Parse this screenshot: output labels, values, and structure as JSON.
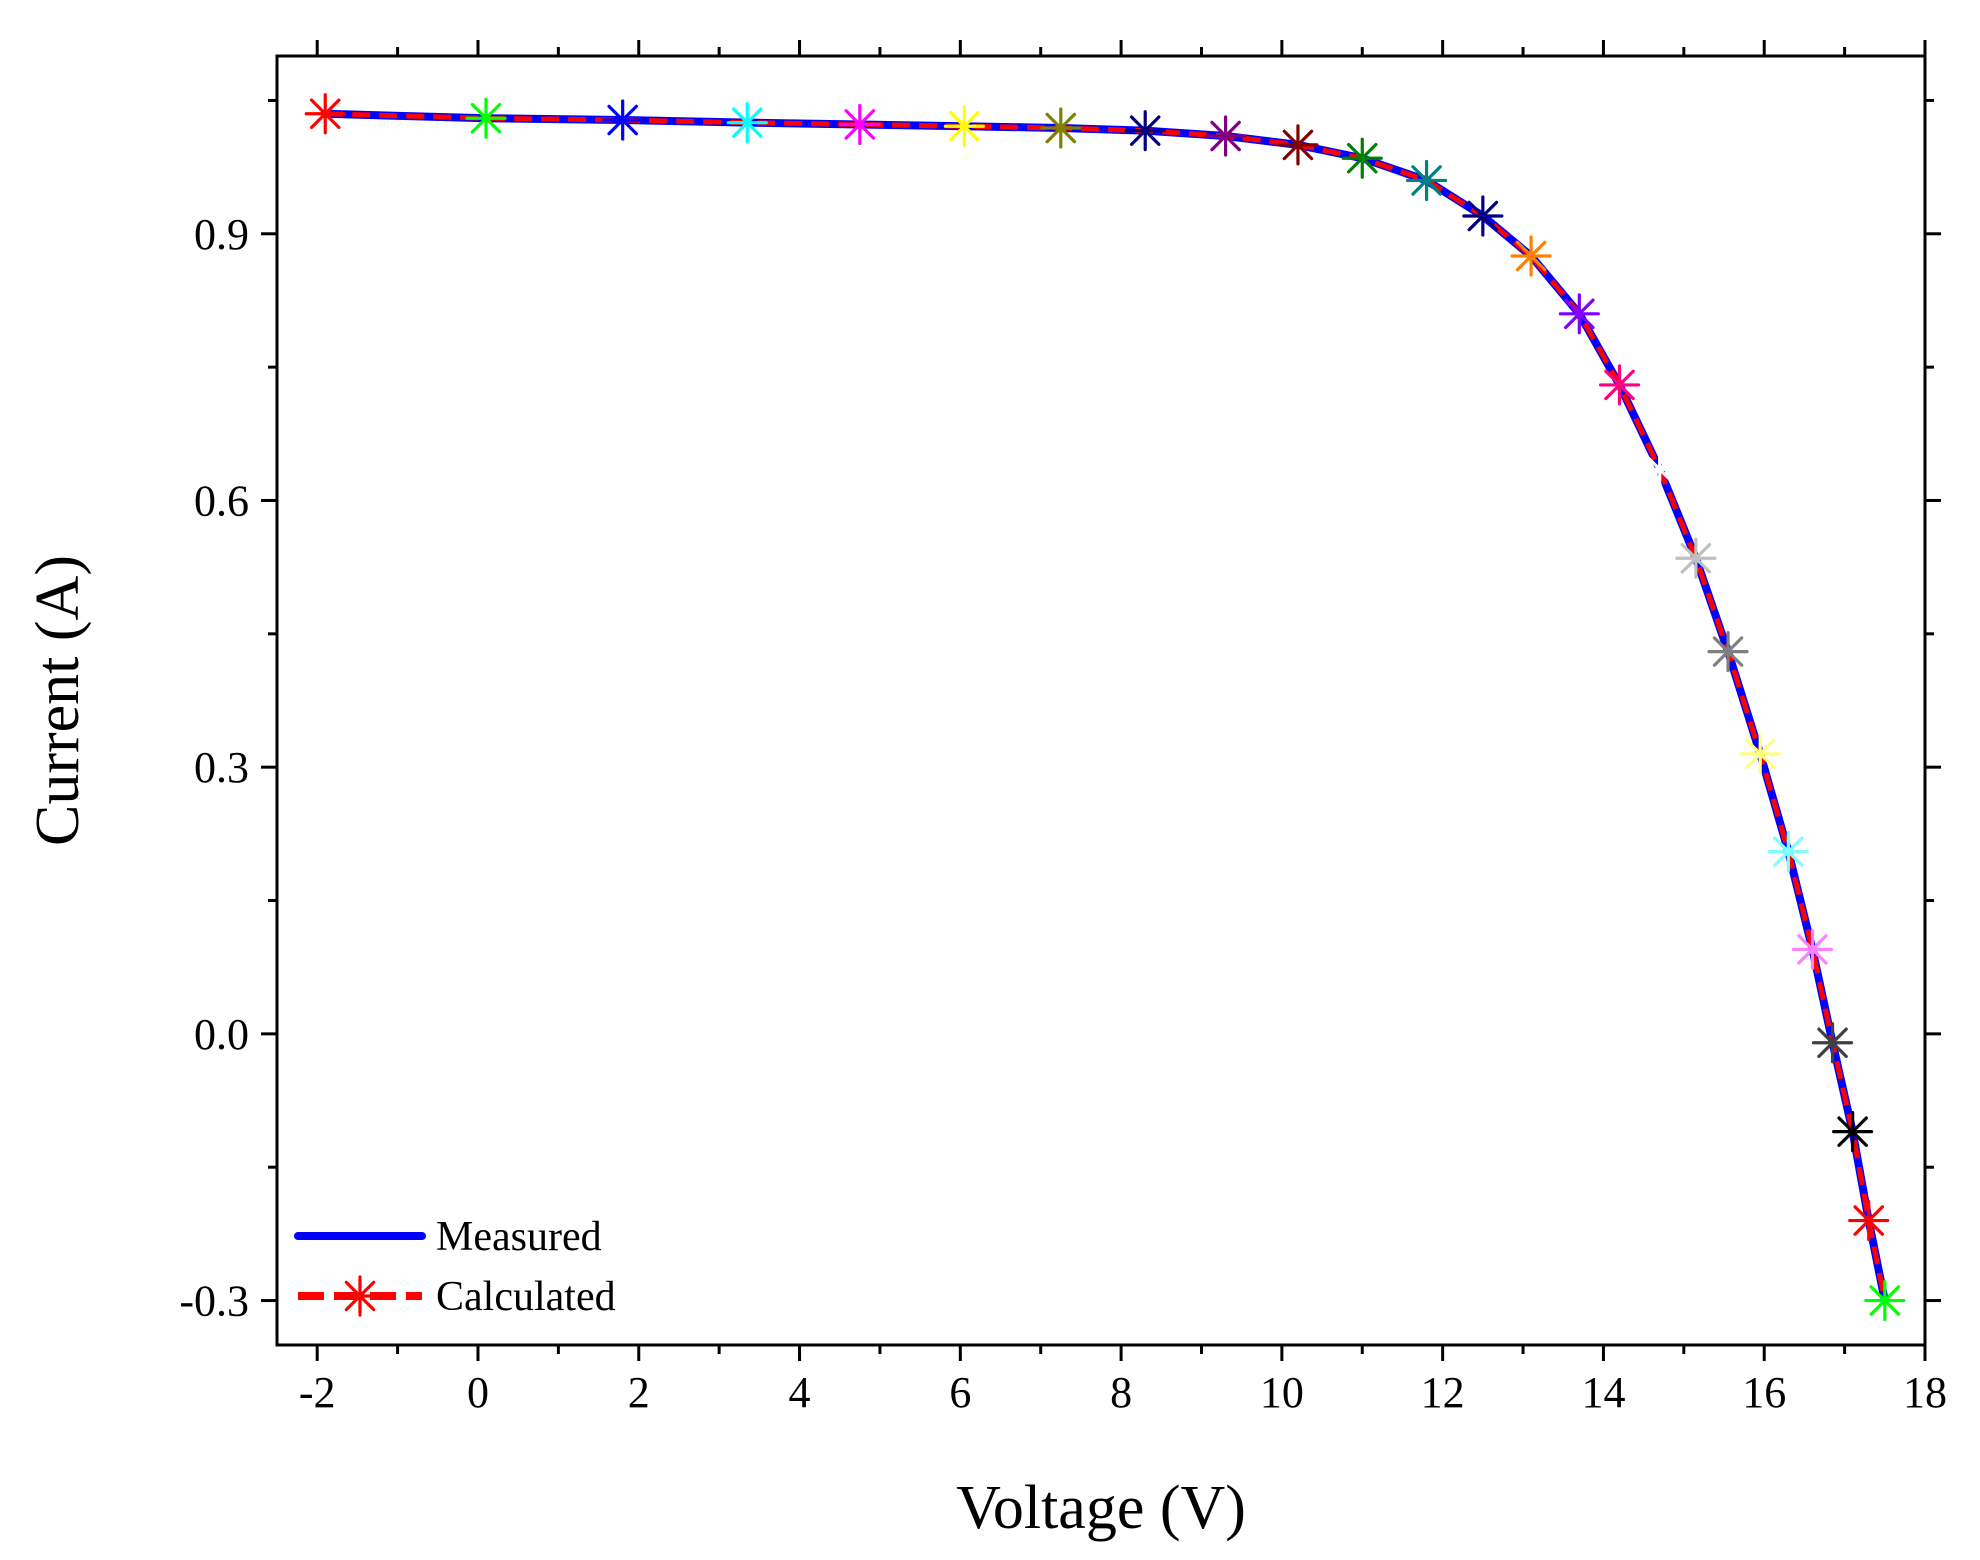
{
  "chart_data": {
    "type": "line",
    "title": "",
    "xlabel": "Voltage (V)",
    "ylabel": "Current (A)",
    "xlim": [
      -2.5,
      18
    ],
    "ylim": [
      -0.35,
      1.1
    ],
    "xticks": [
      -2,
      0,
      2,
      4,
      6,
      8,
      10,
      12,
      14,
      16,
      18
    ],
    "xtick_labels": [
      "-2",
      "0",
      "2",
      "4",
      "6",
      "8",
      "10",
      "12",
      "14",
      "16",
      "18"
    ],
    "yticks": [
      -0.3,
      0.0,
      0.3,
      0.6,
      0.9
    ],
    "ytick_labels": [
      "-0.3",
      "0.0",
      "0.3",
      "0.6",
      "0.9"
    ],
    "grid": false,
    "legend": {
      "position": "bottom-left",
      "entries": [
        "Measured",
        "Calculated"
      ]
    },
    "series": [
      {
        "name": "Measured",
        "style": "solid line",
        "color": "#0000ff",
        "x": [
          -1.9,
          0.1,
          1.8,
          3.35,
          4.75,
          6.05,
          7.25,
          8.3,
          9.3,
          10.2,
          11.0,
          11.8,
          12.5,
          13.1,
          13.7,
          14.2,
          14.7,
          15.15,
          15.55,
          15.95,
          16.3,
          16.6,
          16.85,
          17.1,
          17.3,
          17.5
        ],
        "y": [
          1.035,
          1.03,
          1.028,
          1.025,
          1.023,
          1.021,
          1.019,
          1.016,
          1.01,
          1.0,
          0.985,
          0.96,
          0.92,
          0.875,
          0.81,
          0.73,
          0.635,
          0.535,
          0.43,
          0.315,
          0.205,
          0.095,
          -0.01,
          -0.11,
          -0.21,
          -0.3
        ]
      },
      {
        "name": "Calculated",
        "style": "dashed line with star markers",
        "color": "#ff0000",
        "x": [
          -1.9,
          0.1,
          1.8,
          3.35,
          4.75,
          6.05,
          7.25,
          8.3,
          9.3,
          10.2,
          11.0,
          11.8,
          12.5,
          13.1,
          13.7,
          14.2,
          14.7,
          15.15,
          15.55,
          15.95,
          16.3,
          16.6,
          16.85,
          17.1,
          17.3,
          17.5
        ],
        "y": [
          1.035,
          1.03,
          1.028,
          1.025,
          1.023,
          1.021,
          1.019,
          1.016,
          1.01,
          1.0,
          0.985,
          0.96,
          0.92,
          0.875,
          0.81,
          0.73,
          0.635,
          0.535,
          0.43,
          0.315,
          0.205,
          0.095,
          -0.01,
          -0.11,
          -0.21,
          -0.3
        ],
        "marker_colors": [
          "#ff0000",
          "#00ff00",
          "#0000ff",
          "#00ffff",
          "#ff00ff",
          "#ffff00",
          "#808000",
          "#000080",
          "#800080",
          "#800000",
          "#008000",
          "#008080",
          "#000080",
          "#ff8000",
          "#8000ff",
          "#ff0080",
          "#ffffff",
          "#c0c0c0",
          "#808080",
          "#ffff80",
          "#80ffff",
          "#ff80ff",
          "#404040",
          "#000000",
          "#ff0000",
          "#00ff00"
        ]
      }
    ]
  }
}
